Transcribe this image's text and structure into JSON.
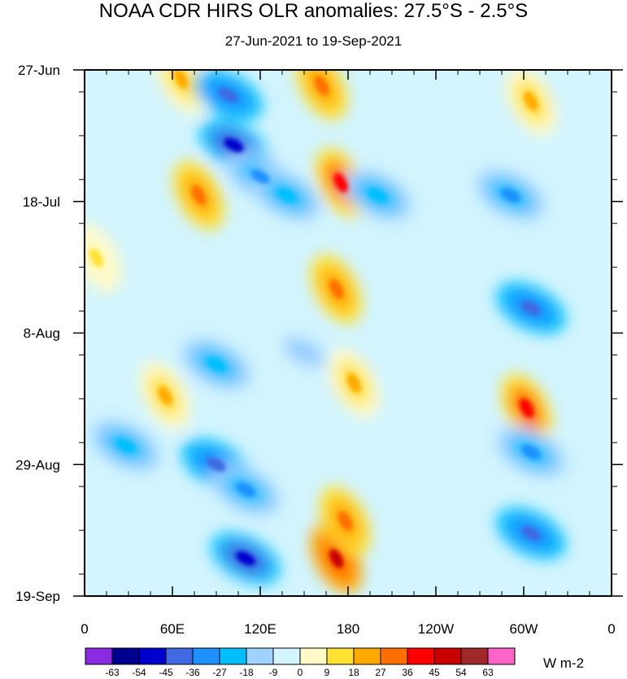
{
  "chart_data": {
    "type": "heatmap",
    "title": "NOAA CDR HIRS OLR anomalies: 27.5°S - 2.5°S",
    "subtitle": "27-Jun-2021 to 19-Sep-2021",
    "units": "W m-2",
    "xlabel": "",
    "ylabel": "",
    "x_range": [
      0,
      360
    ],
    "y_range": [
      "27-Jun-2021",
      "19-Sep-2021"
    ],
    "y_days": 84,
    "x_ticks": [
      {
        "lon": 0,
        "label": "0"
      },
      {
        "lon": 60,
        "label": "60E"
      },
      {
        "lon": 120,
        "label": "120E"
      },
      {
        "lon": 180,
        "label": "180"
      },
      {
        "lon": 240,
        "label": "120W"
      },
      {
        "lon": 300,
        "label": "60W"
      },
      {
        "lon": 360,
        "label": "0"
      }
    ],
    "y_ticks": [
      {
        "day": 0,
        "label": "27-Jun"
      },
      {
        "day": 21,
        "label": "18-Jul"
      },
      {
        "day": 42,
        "label": "8-Aug"
      },
      {
        "day": 63,
        "label": "29-Aug"
      },
      {
        "day": 84,
        "label": "19-Sep"
      }
    ],
    "colorbar": {
      "levels": [
        "-63",
        "-54",
        "-45",
        "-36",
        "-27",
        "-18",
        "-9",
        "0",
        "9",
        "18",
        "27",
        "36",
        "45",
        "54",
        "63"
      ],
      "colors": [
        "#8a2be2",
        "#000090",
        "#0000cd",
        "#4169e1",
        "#1e90ff",
        "#00bfff",
        "#a0d2ff",
        "#d2f5ff",
        "#fffac8",
        "#ffe132",
        "#ffaa00",
        "#ff6e00",
        "#ff0000",
        "#c80000",
        "#a02828",
        "#ff64c8"
      ]
    },
    "anomaly_features": [
      {
        "lon": 66,
        "day": 1.5,
        "value": 18
      },
      {
        "lon": 98,
        "day": 4,
        "value": -45
      },
      {
        "lon": 102,
        "day": 12,
        "value": -54
      },
      {
        "lon": 120,
        "day": 17,
        "value": -36
      },
      {
        "lon": 138,
        "day": 20,
        "value": -27
      },
      {
        "lon": 78,
        "day": 20,
        "value": 27
      },
      {
        "lon": 162,
        "day": 2.5,
        "value": 27
      },
      {
        "lon": 175,
        "day": 18,
        "value": 36
      },
      {
        "lon": 172,
        "day": 35,
        "value": 27
      },
      {
        "lon": 200,
        "day": 20,
        "value": -27
      },
      {
        "lon": 305,
        "day": 5,
        "value": 18
      },
      {
        "lon": 291,
        "day": 20,
        "value": -36
      },
      {
        "lon": 305,
        "day": 38,
        "value": -45
      },
      {
        "lon": 302,
        "day": 54,
        "value": 36
      },
      {
        "lon": 305,
        "day": 61,
        "value": -36
      },
      {
        "lon": 305,
        "day": 74,
        "value": -45
      },
      {
        "lon": 90,
        "day": 63,
        "value": -45
      },
      {
        "lon": 110,
        "day": 67,
        "value": -36
      },
      {
        "lon": 110,
        "day": 78,
        "value": -54
      },
      {
        "lon": 172,
        "day": 78,
        "value": 45
      },
      {
        "lon": 178,
        "day": 72,
        "value": 27
      },
      {
        "lon": 55,
        "day": 52,
        "value": 18
      },
      {
        "lon": 28,
        "day": 60,
        "value": -27
      },
      {
        "lon": 90,
        "day": 47,
        "value": -27
      },
      {
        "lon": 150,
        "day": 45,
        "value": -18
      },
      {
        "lon": 184,
        "day": 50,
        "value": 18
      },
      {
        "lon": 8,
        "day": 30,
        "value": 9
      }
    ]
  }
}
